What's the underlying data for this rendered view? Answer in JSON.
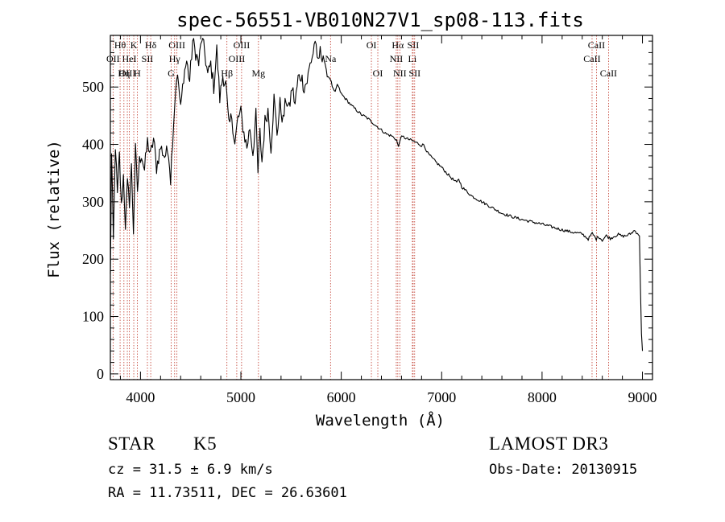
{
  "chart_data": {
    "type": "line",
    "title": "spec-56551-VB010N27V1_sp08-113.fits",
    "xlabel": "Wavelength (Å)",
    "ylabel": "Flux (relative)",
    "xlim": [
      3700,
      9100
    ],
    "ylim": [
      -10,
      590
    ],
    "xticks": [
      4000,
      5000,
      6000,
      7000,
      8000,
      9000
    ],
    "yticks": [
      0,
      100,
      200,
      300,
      400,
      500
    ],
    "grid": false,
    "series": [
      {
        "name": "flux",
        "x": [
          3700,
          3712,
          3730,
          3750,
          3770,
          3790,
          3810,
          3830,
          3850,
          3870,
          3890,
          3910,
          3930,
          3950,
          3970,
          3990,
          4010,
          4040,
          4070,
          4100,
          4130,
          4160,
          4200,
          4240,
          4280,
          4300,
          4320,
          4340,
          4360,
          4380,
          4400,
          4430,
          4460,
          4490,
          4520,
          4550,
          4580,
          4610,
          4640,
          4670,
          4700,
          4730,
          4760,
          4790,
          4820,
          4850,
          4880,
          4910,
          4940,
          4970,
          5000,
          5030,
          5060,
          5090,
          5120,
          5150,
          5170,
          5190,
          5210,
          5240,
          5270,
          5300,
          5330,
          5360,
          5390,
          5420,
          5450,
          5480,
          5510,
          5540,
          5570,
          5600,
          5630,
          5660,
          5690,
          5720,
          5740,
          5760,
          5790,
          5820,
          5860,
          5890,
          5920,
          5940,
          5960,
          6000,
          6050,
          6100,
          6150,
          6200,
          6250,
          6300,
          6350,
          6400,
          6450,
          6500,
          6550,
          6570,
          6590,
          6620,
          6650,
          6700,
          6750,
          6800,
          6820,
          6840,
          6860,
          6900,
          6950,
          7000,
          7050,
          7100,
          7150,
          7170,
          7200,
          7300,
          7400,
          7500,
          7600,
          7700,
          7800,
          7900,
          8000,
          8100,
          8200,
          8300,
          8400,
          8460,
          8500,
          8540,
          8560,
          8600,
          8640,
          8680,
          8720,
          8760,
          8800,
          8840,
          8880,
          8920,
          8950,
          8970,
          8980,
          8990,
          9000
        ],
        "y": [
          170,
          380,
          230,
          400,
          310,
          380,
          290,
          345,
          260,
          330,
          300,
          360,
          250,
          390,
          320,
          370,
          385,
          355,
          405,
          380,
          410,
          360,
          395,
          380,
          390,
          340,
          410,
          470,
          520,
          505,
          460,
          520,
          545,
          510,
          580,
          560,
          540,
          585,
          560,
          520,
          540,
          500,
          565,
          480,
          520,
          505,
          430,
          450,
          400,
          445,
          455,
          420,
          395,
          430,
          385,
          450,
          350,
          420,
          370,
          440,
          460,
          395,
          480,
          420,
          470,
          440,
          480,
          460,
          500,
          470,
          515,
          520,
          500,
          510,
          540,
          560,
          585,
          540,
          560,
          555,
          520,
          515,
          495,
          490,
          505,
          488,
          478,
          468,
          460,
          452,
          447,
          440,
          432,
          425,
          418,
          415,
          408,
          395,
          412,
          413,
          410,
          407,
          403,
          398,
          400,
          393,
          385,
          377,
          368,
          360,
          350,
          341,
          333,
          340,
          326,
          310,
          300,
          290,
          280,
          274,
          269,
          265,
          261,
          256,
          251,
          247,
          244,
          235,
          245,
          235,
          240,
          233,
          241,
          236,
          240,
          243,
          240,
          241,
          244,
          250,
          245,
          240,
          150,
          70,
          40
        ]
      }
    ],
    "lines": [
      {
        "label": "Hθ",
        "x": 3797,
        "row": 1
      },
      {
        "label": "OII",
        "x": 3727,
        "row": 2
      },
      {
        "label": "OIII",
        "x": 3869,
        "row": 3
      },
      {
        "label": "K",
        "x": 3933,
        "row": 1
      },
      {
        "label": "HeI",
        "x": 3889,
        "row": 2
      },
      {
        "label": "Hη",
        "x": 3835,
        "row": 3
      },
      {
        "label": "SII",
        "x": 4069,
        "row": 2
      },
      {
        "label": "H",
        "x": 3968,
        "row": 3
      },
      {
        "label": "Hδ",
        "x": 4102,
        "row": 1
      },
      {
        "label": "OIII",
        "x": 4363,
        "row": 1
      },
      {
        "label": "Hγ",
        "x": 4340,
        "row": 2
      },
      {
        "label": "G",
        "x": 4305,
        "row": 3
      },
      {
        "label": "Hβ",
        "x": 4861,
        "row": 3
      },
      {
        "label": "OIII",
        "x": 4959,
        "row": 2
      },
      {
        "label": "OIII",
        "x": 5007,
        "row": 1
      },
      {
        "label": "Mg",
        "x": 5175,
        "row": 3
      },
      {
        "label": "Na",
        "x": 5893,
        "row": 2
      },
      {
        "label": "OI",
        "x": 6300,
        "row": 1
      },
      {
        "label": "OI",
        "x": 6364,
        "row": 3
      },
      {
        "label": "Hα",
        "x": 6563,
        "row": 1
      },
      {
        "label": "NII",
        "x": 6548,
        "row": 2
      },
      {
        "label": "NII",
        "x": 6583,
        "row": 3
      },
      {
        "label": "SII",
        "x": 6716,
        "row": 1
      },
      {
        "label": "Li",
        "x": 6708,
        "row": 2
      },
      {
        "label": "SII",
        "x": 6731,
        "row": 3
      },
      {
        "label": "CaII",
        "x": 8542,
        "row": 1
      },
      {
        "label": "CaII",
        "x": 8498,
        "row": 2
      },
      {
        "label": "CaII",
        "x": 8662,
        "row": 3
      }
    ]
  },
  "info": {
    "class_label": "STAR",
    "subclass": "K5",
    "survey": "LAMOST DR3",
    "cz_line": "cz = 31.5 ± 6.9 km/s",
    "obs_date": "Obs-Date: 20130915",
    "radec": "RA =  11.73511, DEC =  26.63601"
  },
  "colors": {
    "line_marker": "#c0392b",
    "spectrum": "#000000"
  }
}
